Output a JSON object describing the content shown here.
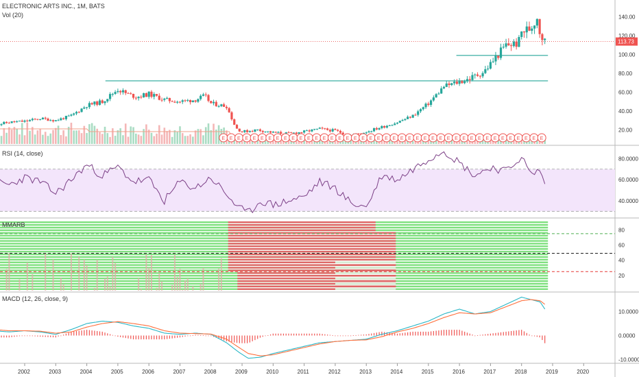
{
  "chart_data": [
    {
      "type": "candlestick",
      "title": "ELECTRONIC ARTS INC., 1M, BATS",
      "subtitle": "Vol (20)",
      "y_ticks": [
        "140.00",
        "120.00",
        "100.00",
        "80.00",
        "60.00",
        "40.00",
        "20.00"
      ],
      "ylim": [
        5,
        152
      ],
      "last_price_label": "113.73",
      "last_price": 113.73,
      "horizontal_levels": [
        {
          "y": 72,
          "x_from": 2004.6,
          "x_to": 2018.85
        },
        {
          "y": 99,
          "x_from": 2015.9,
          "x_to": 2018.85
        }
      ],
      "earnings_marker_text": "E",
      "earnings_range": [
        2008.4,
        2018.75
      ],
      "prices": [
        [
          2001.0,
          25
        ],
        [
          2001.5,
          28
        ],
        [
          2002.0,
          29
        ],
        [
          2002.5,
          32
        ],
        [
          2003.0,
          30
        ],
        [
          2003.5,
          35
        ],
        [
          2004.0,
          46
        ],
        [
          2004.5,
          50
        ],
        [
          2005.0,
          63
        ],
        [
          2005.3,
          58
        ],
        [
          2005.6,
          55
        ],
        [
          2006.0,
          58
        ],
        [
          2006.5,
          52
        ],
        [
          2007.0,
          50
        ],
        [
          2007.5,
          52
        ],
        [
          2007.8,
          56
        ],
        [
          2008.0,
          48
        ],
        [
          2008.5,
          45
        ],
        [
          2008.8,
          22
        ],
        [
          2009.0,
          18
        ],
        [
          2009.5,
          20
        ],
        [
          2010.0,
          17
        ],
        [
          2010.5,
          16
        ],
        [
          2011.0,
          18
        ],
        [
          2011.5,
          21
        ],
        [
          2012.0,
          19
        ],
        [
          2012.5,
          14
        ],
        [
          2013.0,
          18
        ],
        [
          2013.5,
          23
        ],
        [
          2014.0,
          28
        ],
        [
          2014.5,
          35
        ],
        [
          2015.0,
          48
        ],
        [
          2015.5,
          66
        ],
        [
          2015.9,
          70
        ],
        [
          2016.3,
          74
        ],
        [
          2016.8,
          82
        ],
        [
          2017.0,
          90
        ],
        [
          2017.5,
          110
        ],
        [
          2017.9,
          112
        ],
        [
          2018.0,
          124
        ],
        [
          2018.3,
          128
        ],
        [
          2018.5,
          140
        ],
        [
          2018.6,
          122
        ],
        [
          2018.75,
          113.73
        ]
      ]
    },
    {
      "type": "line",
      "title": "RSI (14, close)",
      "y_ticks": [
        "80.0000",
        "60.0000",
        "40.0000"
      ],
      "ylim": [
        25,
        90
      ],
      "band": [
        30,
        70
      ],
      "x": [
        2001.0,
        2001.5,
        2002.0,
        2002.5,
        2003.0,
        2003.5,
        2004.0,
        2004.5,
        2005.0,
        2005.5,
        2006.0,
        2006.5,
        2007.0,
        2007.5,
        2008.0,
        2008.5,
        2008.9,
        2009.2,
        2009.6,
        2010.0,
        2010.5,
        2011.0,
        2011.5,
        2012.0,
        2012.5,
        2013.0,
        2013.5,
        2014.0,
        2014.5,
        2015.0,
        2015.5,
        2016.0,
        2016.5,
        2017.0,
        2017.5,
        2018.0,
        2018.3,
        2018.6,
        2018.75
      ],
      "values": [
        60,
        55,
        62,
        58,
        47,
        60,
        74,
        64,
        72,
        58,
        60,
        40,
        58,
        52,
        62,
        46,
        33,
        28,
        40,
        36,
        40,
        44,
        58,
        52,
        38,
        34,
        64,
        60,
        70,
        80,
        88,
        76,
        64,
        72,
        68,
        82,
        64,
        70,
        54
      ]
    },
    {
      "type": "heatmap",
      "title": "MMARB",
      "y_ticks": [
        "80",
        "60",
        "40",
        "20"
      ],
      "ylim": [
        0,
        92
      ],
      "ref_lines": [
        {
          "y": 75,
          "color": "#4caf50"
        },
        {
          "y": 49,
          "color": "#111111"
        },
        {
          "y": 25,
          "color": "#e53935"
        }
      ],
      "colors": {
        "bull": "#7ee07e",
        "bear": "#e06666",
        "neutral": "#d8ecd8"
      }
    },
    {
      "type": "line",
      "title": "MACD (12, 26, close, 9)",
      "y_ticks": [
        "10.0000",
        "0.0000",
        "-10.0000"
      ],
      "ylim": [
        -11,
        17
      ],
      "x": [
        2001.0,
        2001.5,
        2002.0,
        2002.5,
        2003.0,
        2003.5,
        2004.0,
        2004.5,
        2005.0,
        2005.5,
        2006.0,
        2006.5,
        2007.0,
        2007.5,
        2008.0,
        2008.5,
        2008.9,
        2009.2,
        2009.6,
        2010.0,
        2010.5,
        2011.0,
        2011.5,
        2012.0,
        2012.5,
        2013.0,
        2013.5,
        2014.0,
        2014.5,
        2015.0,
        2015.5,
        2016.0,
        2016.5,
        2017.0,
        2017.5,
        2018.0,
        2018.3,
        2018.6,
        2018.75
      ],
      "series": [
        {
          "values": [
            2,
            1.5,
            2,
            1.5,
            0.5,
            2.5,
            5,
            6,
            5.5,
            4,
            3,
            1,
            0.5,
            1,
            0.5,
            -3,
            -7,
            -9.5,
            -9,
            -7.5,
            -6,
            -4.5,
            -3,
            -2.5,
            -2,
            -1.5,
            0.5,
            2,
            4,
            6,
            9,
            11,
            9,
            10,
            13,
            16,
            15,
            14,
            11
          ]
        },
        {
          "values": [
            2.5,
            2,
            2,
            1.8,
            1,
            1.5,
            3.5,
            5,
            5.8,
            5,
            4,
            2,
            1,
            0.8,
            0.6,
            -1.5,
            -5,
            -7.5,
            -8.5,
            -8,
            -6.5,
            -5,
            -3.5,
            -2.5,
            -2,
            -1.8,
            -0.5,
            1.5,
            3,
            5,
            7.5,
            9.5,
            9,
            9.5,
            12,
            14.5,
            15,
            14.5,
            13
          ]
        }
      ]
    }
  ],
  "x_ticks": [
    "2002",
    "2003",
    "2004",
    "2005",
    "2006",
    "2007",
    "2008",
    "2009",
    "2010",
    "2011",
    "2012",
    "2013",
    "2014",
    "2015",
    "2016",
    "2017",
    "2018",
    "2019",
    "2020"
  ]
}
